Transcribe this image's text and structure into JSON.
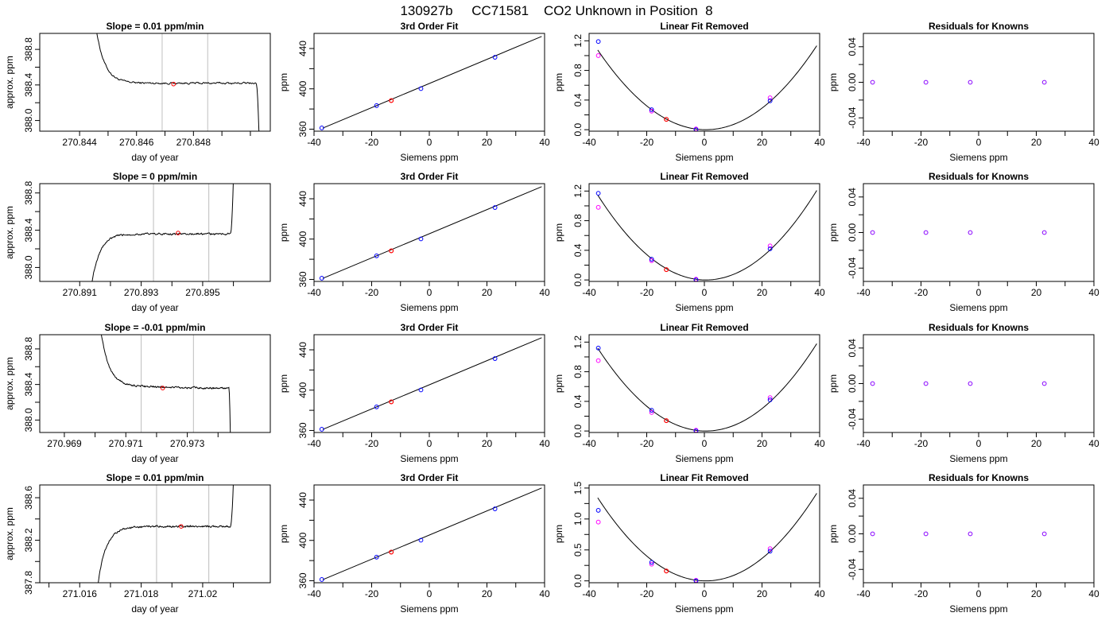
{
  "figure": {
    "title": "130927b     CC71581    CO2 Unknown in Position  8"
  },
  "colors": {
    "axis": "#000000",
    "grid_vline": "#bebebe",
    "known_point": "#0000ff",
    "unknown_point": "#ff0000",
    "raw_point": "#ff00ff",
    "residual_point": "#8800ff",
    "line": "#000000"
  },
  "chart_data": [
    {
      "type": "line",
      "row": 1,
      "col": 1,
      "title": "Slope =  0.01  ppm/min",
      "xlabel": "day of year",
      "ylabel": "approx. ppm",
      "xlim": [
        270.8426,
        270.8507
      ],
      "ylim": [
        387.88,
        388.98
      ],
      "xticks": [
        270.844,
        270.846,
        270.848
      ],
      "xminor": [
        270.845,
        270.847,
        270.849,
        270.85
      ],
      "yticks": [
        388.0,
        388.4,
        388.8
      ],
      "yminor": [
        388.2,
        388.6
      ],
      "vlines": [
        270.8469,
        270.8485
      ],
      "trace_shape": "decay",
      "trace": {
        "x_start": 270.8446,
        "x_end": 270.8503,
        "plateau": 388.42,
        "noise": 0.008,
        "start_level": 389.0,
        "end_level": 387.88,
        "settle_x": 270.8455,
        "edge_x": 270.8502
      },
      "marker": {
        "x": 270.8473,
        "y": 388.41
      }
    },
    {
      "type": "line",
      "row": 1,
      "col": 2,
      "title": "3rd Order Fit",
      "xlabel": "Siemens ppm",
      "ylabel": "ppm",
      "xlim": [
        -40,
        40
      ],
      "ylim": [
        358,
        455
      ],
      "xticks": [
        -40,
        -20,
        0,
        20,
        40
      ],
      "xminor": [
        -30,
        -10,
        10,
        30
      ],
      "yticks": [
        360,
        400,
        440
      ],
      "yminor": [
        380,
        420
      ],
      "fit_line": {
        "x0": -37,
        "y0": 361,
        "x1": 39,
        "y1": 452
      },
      "known_points": [
        {
          "x": -37.3,
          "y": 361.2
        },
        {
          "x": -18.3,
          "y": 383.4
        },
        {
          "x": -2.9,
          "y": 400.2
        },
        {
          "x": 22.8,
          "y": 431.3
        }
      ],
      "unknown_points": [
        {
          "x": -13.2,
          "y": 388.4
        }
      ]
    },
    {
      "type": "scatter",
      "row": 1,
      "col": 3,
      "title": "Linear Fit Removed",
      "xlabel": "Siemens ppm",
      "ylabel": "ppm",
      "xlim": [
        -40,
        40
      ],
      "ylim": [
        -0.02,
        1.3
      ],
      "xticks": [
        -40,
        -20,
        0,
        20,
        40
      ],
      "xminor": [
        -30,
        -10,
        10,
        30
      ],
      "yticks": [
        0.0,
        0.4,
        0.8,
        1.2
      ],
      "yminor": [
        0.2,
        0.6,
        1.0
      ],
      "curve": {
        "a": 0.000765,
        "h": 0.5,
        "x_from": -37,
        "x_to": 39
      },
      "known_points": [
        {
          "x": -36.8,
          "y": 1.19
        },
        {
          "x": -18.3,
          "y": 0.27
        },
        {
          "x": -2.9,
          "y": 0.0
        },
        {
          "x": 22.8,
          "y": 0.39
        }
      ],
      "raw_points": [
        {
          "x": -36.8,
          "y": 1.0
        },
        {
          "x": -18.3,
          "y": 0.25
        },
        {
          "x": -2.9,
          "y": 0.01
        },
        {
          "x": 22.8,
          "y": 0.43
        }
      ],
      "unknown_points": [
        {
          "x": -13.2,
          "y": 0.14
        }
      ]
    },
    {
      "type": "scatter",
      "row": 1,
      "col": 4,
      "title": "Residuals for Knowns",
      "xlabel": "Siemens ppm",
      "ylabel": "ppm",
      "xlim": [
        -40,
        40
      ],
      "ylim": [
        -0.055,
        0.055
      ],
      "xticks": [
        -40,
        -20,
        0,
        20,
        40
      ],
      "xminor": [
        -30,
        -10,
        10,
        30
      ],
      "yticks": [
        -0.04,
        0.0,
        0.04
      ],
      "yminor": [
        -0.02,
        0.02
      ],
      "yticklabels": [
        "-0.04",
        "0.00",
        "0.04"
      ],
      "residual_points": [
        {
          "x": -36.8,
          "y": 0.0
        },
        {
          "x": -18.3,
          "y": 0.0
        },
        {
          "x": -2.9,
          "y": 0.0
        },
        {
          "x": 22.8,
          "y": 0.0
        }
      ]
    },
    {
      "type": "line",
      "row": 2,
      "col": 1,
      "title": "Slope =  0  ppm/min",
      "xlabel": "day of year",
      "ylabel": "approx. ppm",
      "xlim": [
        270.8897,
        270.8972
      ],
      "ylim": [
        387.85,
        388.9
      ],
      "xticks": [
        270.891,
        270.893,
        270.895
      ],
      "xminor": [
        270.892,
        270.894,
        270.896
      ],
      "yticks": [
        388.0,
        388.4,
        388.8
      ],
      "yminor": [
        388.2,
        388.6
      ],
      "vlines": [
        270.8934,
        270.8952
      ],
      "trace_shape": "rise",
      "trace": {
        "x_start": 270.8914,
        "x_end": 270.896,
        "plateau": 388.36,
        "noise": 0.008,
        "start_level": 387.85,
        "end_level": 388.95,
        "settle_x": 270.8922,
        "edge_x": 270.8959
      },
      "marker": {
        "x": 270.8942,
        "y": 388.37
      }
    },
    {
      "type": "line",
      "row": 2,
      "col": 2,
      "title": "3rd Order Fit",
      "xlabel": "Siemens ppm",
      "ylabel": "ppm",
      "xlim": [
        -40,
        40
      ],
      "ylim": [
        358,
        455
      ],
      "xticks": [
        -40,
        -20,
        0,
        20,
        40
      ],
      "xminor": [
        -30,
        -10,
        10,
        30
      ],
      "yticks": [
        360,
        400,
        440
      ],
      "yminor": [
        380,
        420
      ],
      "fit_line": {
        "x0": -37,
        "y0": 361,
        "x1": 39,
        "y1": 452
      },
      "known_points": [
        {
          "x": -37.3,
          "y": 361.2
        },
        {
          "x": -18.3,
          "y": 383.4
        },
        {
          "x": -2.9,
          "y": 400.2
        },
        {
          "x": 22.8,
          "y": 431.3
        }
      ],
      "unknown_points": [
        {
          "x": -13.2,
          "y": 388.4
        }
      ]
    },
    {
      "type": "scatter",
      "row": 2,
      "col": 3,
      "title": "Linear Fit Removed",
      "xlabel": "Siemens ppm",
      "ylabel": "ppm",
      "xlim": [
        -40,
        40
      ],
      "ylim": [
        -0.02,
        1.3
      ],
      "xticks": [
        -40,
        -20,
        0,
        20,
        40
      ],
      "xminor": [
        -30,
        -10,
        10,
        30
      ],
      "yticks": [
        0.0,
        0.4,
        0.8,
        1.2
      ],
      "yminor": [
        0.2,
        0.6,
        1.0
      ],
      "curve": {
        "a": 0.000815,
        "h": 0.5,
        "x_from": -37,
        "x_to": 39
      },
      "known_points": [
        {
          "x": -36.8,
          "y": 1.17
        },
        {
          "x": -18.3,
          "y": 0.28
        },
        {
          "x": -2.9,
          "y": 0.0
        },
        {
          "x": 22.8,
          "y": 0.42
        }
      ],
      "raw_points": [
        {
          "x": -36.8,
          "y": 0.98
        },
        {
          "x": -18.3,
          "y": 0.26
        },
        {
          "x": -2.9,
          "y": 0.01
        },
        {
          "x": 22.8,
          "y": 0.46
        }
      ],
      "unknown_points": [
        {
          "x": -13.2,
          "y": 0.14
        }
      ]
    },
    {
      "type": "scatter",
      "row": 2,
      "col": 4,
      "title": "Residuals for Knowns",
      "xlabel": "Siemens ppm",
      "ylabel": "ppm",
      "xlim": [
        -40,
        40
      ],
      "ylim": [
        -0.055,
        0.055
      ],
      "xticks": [
        -40,
        -20,
        0,
        20,
        40
      ],
      "xminor": [
        -30,
        -10,
        10,
        30
      ],
      "yticks": [
        -0.04,
        0.0,
        0.04
      ],
      "yminor": [
        -0.02,
        0.02
      ],
      "yticklabels": [
        "-0.04",
        "0.00",
        "0.04"
      ],
      "residual_points": [
        {
          "x": -36.8,
          "y": 0.0
        },
        {
          "x": -18.3,
          "y": 0.0
        },
        {
          "x": -2.9,
          "y": 0.0
        },
        {
          "x": 22.8,
          "y": 0.0
        }
      ]
    },
    {
      "type": "line",
      "row": 3,
      "col": 1,
      "title": "Slope =  -0.01  ppm/min",
      "xlabel": "day of year",
      "ylabel": "approx. ppm",
      "xlim": [
        270.9682,
        270.9757
      ],
      "ylim": [
        387.86,
        388.96
      ],
      "xticks": [
        270.969,
        270.971,
        270.973
      ],
      "xminor": [
        270.97,
        270.972,
        270.974
      ],
      "yticks": [
        388.0,
        388.4,
        388.8
      ],
      "yminor": [
        388.2,
        388.6
      ],
      "vlines": [
        270.9715,
        270.9732
      ],
      "trace_shape": "decay",
      "trace": {
        "x_start": 270.9702,
        "x_end": 270.9744,
        "plateau": 388.37,
        "noise": 0.008,
        "start_level": 388.96,
        "end_level": 387.86,
        "settle_x": 270.971,
        "edge_x": 270.97435,
        "drift": -0.03
      },
      "marker": {
        "x": 270.9722,
        "y": 388.36
      }
    },
    {
      "type": "line",
      "row": 3,
      "col": 2,
      "title": "3rd Order Fit",
      "xlabel": "Siemens ppm",
      "ylabel": "ppm",
      "xlim": [
        -40,
        40
      ],
      "ylim": [
        358,
        455
      ],
      "xticks": [
        -40,
        -20,
        0,
        20,
        40
      ],
      "xminor": [
        -30,
        -10,
        10,
        30
      ],
      "yticks": [
        360,
        400,
        440
      ],
      "yminor": [
        380,
        420
      ],
      "fit_line": {
        "x0": -37,
        "y0": 361,
        "x1": 39,
        "y1": 452
      },
      "known_points": [
        {
          "x": -37.3,
          "y": 361.2
        },
        {
          "x": -18.3,
          "y": 383.4
        },
        {
          "x": -2.9,
          "y": 400.2
        },
        {
          "x": 22.8,
          "y": 431.3
        }
      ],
      "unknown_points": [
        {
          "x": -13.2,
          "y": 388.4
        }
      ]
    },
    {
      "type": "scatter",
      "row": 3,
      "col": 3,
      "title": "Linear Fit Removed",
      "xlabel": "Siemens ppm",
      "ylabel": "ppm",
      "xlim": [
        -40,
        40
      ],
      "ylim": [
        -0.02,
        1.3
      ],
      "xticks": [
        -40,
        -20,
        0,
        20,
        40
      ],
      "xminor": [
        -30,
        -10,
        10,
        30
      ],
      "yticks": [
        0.0,
        0.4,
        0.8,
        1.2
      ],
      "yminor": [
        0.2,
        0.6,
        1.0
      ],
      "curve": {
        "a": 0.000795,
        "h": 0.5,
        "x_from": -37,
        "x_to": 39
      },
      "known_points": [
        {
          "x": -36.8,
          "y": 1.12
        },
        {
          "x": -18.3,
          "y": 0.28
        },
        {
          "x": -2.9,
          "y": 0.0
        },
        {
          "x": 22.8,
          "y": 0.42
        }
      ],
      "raw_points": [
        {
          "x": -36.8,
          "y": 0.95
        },
        {
          "x": -18.3,
          "y": 0.25
        },
        {
          "x": -2.9,
          "y": 0.01
        },
        {
          "x": 22.8,
          "y": 0.45
        }
      ],
      "unknown_points": [
        {
          "x": -13.2,
          "y": 0.14
        }
      ]
    },
    {
      "type": "scatter",
      "row": 3,
      "col": 4,
      "title": "Residuals for Knowns",
      "xlabel": "Siemens ppm",
      "ylabel": "ppm",
      "xlim": [
        -40,
        40
      ],
      "ylim": [
        -0.055,
        0.055
      ],
      "xticks": [
        -40,
        -20,
        0,
        20,
        40
      ],
      "xminor": [
        -30,
        -10,
        10,
        30
      ],
      "yticks": [
        -0.04,
        0.0,
        0.04
      ],
      "yminor": [
        -0.02,
        0.02
      ],
      "yticklabels": [
        "-0.04",
        "0.00",
        "0.04"
      ],
      "residual_points": [
        {
          "x": -36.8,
          "y": 0.0
        },
        {
          "x": -18.3,
          "y": 0.0
        },
        {
          "x": -2.9,
          "y": 0.0
        },
        {
          "x": 22.8,
          "y": 0.0
        }
      ]
    },
    {
      "type": "line",
      "row": 4,
      "col": 1,
      "title": "Slope =  0.01  ppm/min",
      "xlabel": "day of year",
      "ylabel": "approx. ppm",
      "xlim": [
        271.0147,
        271.0222
      ],
      "ylim": [
        387.8,
        388.72
      ],
      "xticks": [
        271.016,
        271.018,
        271.02
      ],
      "xminor": [
        271.015,
        271.017,
        271.019,
        271.021
      ],
      "yticks": [
        387.8,
        388.2,
        388.6
      ],
      "yminor": [
        388.0,
        388.4
      ],
      "vlines": [
        271.0185,
        271.0202
      ],
      "trace_shape": "rise",
      "trace": {
        "x_start": 271.0166,
        "x_end": 271.021,
        "plateau": 388.33,
        "noise": 0.007,
        "start_level": 387.8,
        "end_level": 388.75,
        "settle_x": 271.0174,
        "edge_x": 271.0209
      },
      "marker": {
        "x": 271.0193,
        "y": 388.33
      }
    },
    {
      "type": "line",
      "row": 4,
      "col": 2,
      "title": "3rd Order Fit",
      "xlabel": "Siemens ppm",
      "ylabel": "ppm",
      "xlim": [
        -40,
        40
      ],
      "ylim": [
        358,
        455
      ],
      "xticks": [
        -40,
        -20,
        0,
        20,
        40
      ],
      "xminor": [
        -30,
        -10,
        10,
        30
      ],
      "yticks": [
        360,
        400,
        440
      ],
      "yminor": [
        380,
        420
      ],
      "fit_line": {
        "x0": -37,
        "y0": 361,
        "x1": 39,
        "y1": 452
      },
      "known_points": [
        {
          "x": -37.3,
          "y": 361.2
        },
        {
          "x": -18.3,
          "y": 383.4
        },
        {
          "x": -2.9,
          "y": 400.2
        },
        {
          "x": 22.8,
          "y": 431.3
        }
      ],
      "unknown_points": [
        {
          "x": -13.2,
          "y": 388.4
        }
      ]
    },
    {
      "type": "scatter",
      "row": 4,
      "col": 3,
      "title": "Linear Fit Removed",
      "xlabel": "Siemens ppm",
      "ylabel": "ppm",
      "xlim": [
        -40,
        40
      ],
      "ylim": [
        -0.03,
        1.55
      ],
      "xticks": [
        -40,
        -20,
        0,
        20,
        40
      ],
      "xminor": [
        -30,
        -10,
        10,
        30
      ],
      "yticks": [
        0.0,
        0.5,
        1.0,
        1.5
      ],
      "yminor": [
        0.25,
        0.75,
        1.25
      ],
      "curve": {
        "a": 0.000955,
        "h": 0.5,
        "x_from": -37,
        "x_to": 39
      },
      "known_points": [
        {
          "x": -36.8,
          "y": 1.14
        },
        {
          "x": -18.3,
          "y": 0.3
        },
        {
          "x": -2.9,
          "y": 0.0
        },
        {
          "x": 22.8,
          "y": 0.48
        }
      ],
      "raw_points": [
        {
          "x": -36.8,
          "y": 0.95
        },
        {
          "x": -18.3,
          "y": 0.27
        },
        {
          "x": -2.9,
          "y": 0.01
        },
        {
          "x": 22.8,
          "y": 0.52
        }
      ],
      "unknown_points": [
        {
          "x": -13.2,
          "y": 0.16
        }
      ]
    },
    {
      "type": "scatter",
      "row": 4,
      "col": 4,
      "title": "Residuals for Knowns",
      "xlabel": "Siemens ppm",
      "ylabel": "ppm",
      "xlim": [
        -40,
        40
      ],
      "ylim": [
        -0.055,
        0.055
      ],
      "xticks": [
        -40,
        -20,
        0,
        20,
        40
      ],
      "xminor": [
        -30,
        -10,
        10,
        30
      ],
      "yticks": [
        -0.04,
        0.0,
        0.04
      ],
      "yminor": [
        -0.02,
        0.02
      ],
      "yticklabels": [
        "-0.04",
        "0.00",
        "0.04"
      ],
      "residual_points": [
        {
          "x": -36.8,
          "y": 0.0
        },
        {
          "x": -18.3,
          "y": 0.0
        },
        {
          "x": -2.9,
          "y": 0.0
        },
        {
          "x": 22.8,
          "y": 0.0
        }
      ]
    }
  ]
}
